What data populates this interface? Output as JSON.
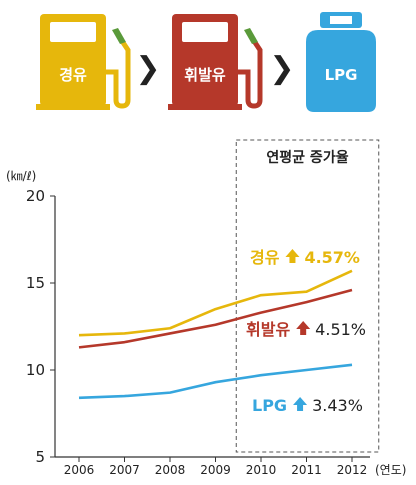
{
  "header": {
    "pumps": [
      {
        "label": "경유",
        "color": "#e6b70c",
        "icon": "fuel-pump-icon"
      },
      {
        "label": "휘발유",
        "color": "#b5382a",
        "icon": "fuel-pump-icon"
      },
      {
        "label": "LPG",
        "color": "#36a6de",
        "icon": "gas-cylinder-icon"
      }
    ],
    "arrow_glyph": "❯"
  },
  "chart_data": {
    "type": "line",
    "title": "",
    "x": [
      2006,
      2007,
      2008,
      2009,
      2010,
      2011,
      2012
    ],
    "x_tick_labels": [
      "2006",
      "2007",
      "2008",
      "2009",
      "2010",
      "2011",
      "2012"
    ],
    "xlabel": "(연도)",
    "ylabel": "(㎞/ℓ)",
    "ylim": [
      5,
      20
    ],
    "y_ticks": [
      5,
      10,
      15,
      20
    ],
    "grid": false,
    "series": [
      {
        "name": "경유",
        "color": "#e6b70c",
        "values": [
          12.0,
          12.1,
          12.4,
          13.5,
          14.3,
          14.5,
          15.7
        ]
      },
      {
        "name": "휘발유",
        "color": "#b5382a",
        "values": [
          11.3,
          11.6,
          12.1,
          12.6,
          13.3,
          13.9,
          14.6
        ]
      },
      {
        "name": "LPG",
        "color": "#36a6de",
        "values": [
          8.4,
          8.5,
          8.7,
          9.3,
          9.7,
          10.0,
          10.3
        ]
      }
    ],
    "highlight_box": {
      "title": "연평균 증가율",
      "x_range": [
        2009.5,
        2012.5
      ]
    },
    "annotations": [
      {
        "series": "경유",
        "label": "경유",
        "value": "4.57%",
        "arrow": "up-arrow-icon",
        "color": "#e6b70c"
      },
      {
        "series": "휘발유",
        "label": "휘발유",
        "value": "4.51%",
        "arrow": "up-arrow-icon",
        "color": "#b5382a"
      },
      {
        "series": "LPG",
        "label": "LPG",
        "value": "3.43%",
        "arrow": "up-arrow-icon",
        "color": "#36a6de"
      }
    ]
  }
}
